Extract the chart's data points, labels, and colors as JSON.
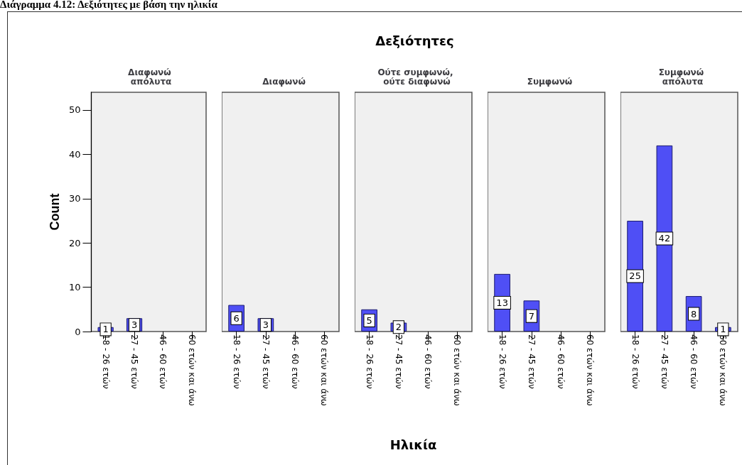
{
  "chart_data": [
    {
      "type": "bar",
      "title": "Διαφωνώ απόλυτα",
      "annotations": [
        "Διάγραμμα 4.12: Δεξιότητες με βάση την ηλικία"
      ],
      "ylabel": "Count",
      "categories": [
        "18 - 26 ετών",
        "27 - 45 ετών",
        "46 - 60 ετών",
        "60 ετών και άνω"
      ],
      "values": [
        1,
        3,
        0,
        0
      ],
      "value_labels": [
        "1",
        "3",
        null,
        null
      ],
      "color": "#4f4ff5",
      "ylim": [
        0,
        54
      ],
      "yticks": [
        0,
        10,
        20,
        30,
        40,
        50
      ]
    },
    {
      "type": "bar",
      "title": "Διαφωνώ",
      "categories": [
        "18 - 26 ετών",
        "27 - 45 ετών",
        "46 - 60 ετών",
        "60 ετών και άνω"
      ],
      "values": [
        6,
        3,
        0,
        0
      ],
      "value_labels": [
        "6",
        "3",
        null,
        null
      ],
      "color": "#4f4ff5",
      "ylim": [
        0,
        54
      ],
      "tick_labels": "x"
    },
    {
      "type": "bar",
      "title": "Ούτε συμφωνώ, ούτε διαφωνώ",
      "annotations": [
        "Δεξιότητες"
      ],
      "xlabel": "Ηλικία",
      "categories": [
        "18 - 26 ετών",
        "27 - 45 ετών",
        "46 - 60 ετών",
        "60 ετών και άνω"
      ],
      "values": [
        5,
        2,
        0,
        0
      ],
      "value_labels": [
        "5",
        "2",
        null,
        null
      ],
      "color": "#4f4ff5",
      "ylim": [
        0,
        54
      ],
      "tick_labels": "x"
    },
    {
      "type": "bar",
      "title": "Συμφωνώ",
      "categories": [
        "18 - 26 ετών",
        "27 - 45 ετών",
        "46 - 60 ετών",
        "60 ετών και άνω"
      ],
      "values": [
        13,
        7,
        0,
        0
      ],
      "value_labels": [
        "13",
        "7",
        null,
        null
      ],
      "color": "#4f4ff5",
      "ylim": [
        0,
        54
      ],
      "tick_labels": "x"
    },
    {
      "type": "bar",
      "title": "Συμφωνώ απόλυτα",
      "categories": [
        "18 - 26 ετών",
        "27 - 45 ετών",
        "46 - 60 ετών",
        "60 ετών και άνω"
      ],
      "values": [
        25,
        42,
        8,
        1
      ],
      "value_labels": [
        "25",
        "42",
        "8",
        "1"
      ],
      "color": "#4f4ff5",
      "ylim": [
        0,
        54
      ],
      "tick_labels": "x"
    }
  ]
}
